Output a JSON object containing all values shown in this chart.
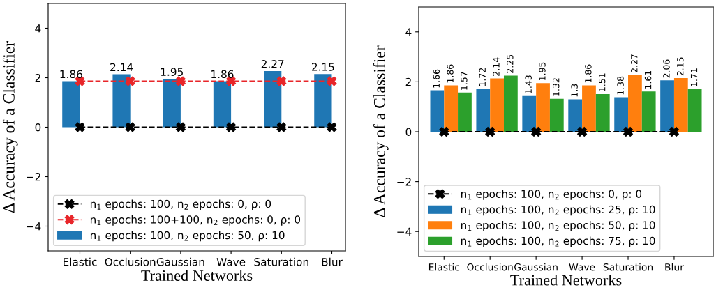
{
  "chart_data": [
    {
      "type": "bar",
      "categories": [
        "Elastic",
        "Occlusion",
        "Gaussian",
        "Wave",
        "Saturation",
        "Blur"
      ],
      "xlabel": "Trained Networks",
      "ylabel": "Δ Accuracy of a Classifier",
      "ylim": [
        -5,
        5
      ],
      "yticks": [
        -4,
        -2,
        0,
        2,
        4
      ],
      "legend": "bottom left",
      "series": [
        {
          "name": "n$_{1}$ epochs: 100, n$_{2}$ epochs: 0, ρ: 0",
          "type": "line",
          "color": "#000000",
          "marker": "cross",
          "line_style": "dashed",
          "values": [
            0,
            0,
            0,
            0,
            0,
            0
          ]
        },
        {
          "name": "n$_{1}$ epochs: 100+100, n$_{2}$ epochs: 0, ρ: 0",
          "type": "line",
          "color": "#e8262a",
          "marker": "cross",
          "line_style": "dashed",
          "values": [
            1.86,
            1.86,
            1.86,
            1.86,
            1.86,
            1.86
          ]
        },
        {
          "name": "n$_{1}$ epochs: 100, n$_{2}$ epochs: 50, ρ: 10",
          "color": "#1f77b4",
          "values": [
            1.86,
            2.14,
            1.95,
            1.86,
            2.27,
            2.15
          ],
          "value_labels": [
            "1.86",
            "2.14",
            "1.95",
            "1.86",
            "2.27",
            "2.15"
          ]
        }
      ]
    },
    {
      "type": "bar",
      "categories": [
        "Elastic",
        "Occlusion",
        "Gaussian",
        "Wave",
        "Saturation",
        "Blur"
      ],
      "xlabel": "Trained Networks",
      "ylabel": "Δ Accuracy of a Classifier",
      "ylim": [
        -5,
        5
      ],
      "yticks": [
        -4,
        -2,
        0,
        2,
        4
      ],
      "legend": "bottom left",
      "series": [
        {
          "name": "n$_{1}$ epochs: 100, n$_{2}$ epochs: 0, ρ: 0",
          "type": "line",
          "color": "#000000",
          "marker": "cross",
          "line_style": "dashed",
          "values": [
            0,
            0,
            0,
            0,
            0,
            0
          ]
        },
        {
          "name": "n$_{1}$ epochs: 100, n$_{2}$ epochs: 25, ρ: 10",
          "color": "#1f77b4",
          "values": [
            1.66,
            1.72,
            1.43,
            1.3,
            1.38,
            2.06
          ],
          "value_labels": [
            "1.66",
            "1.72",
            "1.43",
            "1.3",
            "1.38",
            "2.06"
          ]
        },
        {
          "name": "n$_{1}$ epochs: 100, n$_{2}$ epochs: 50, ρ: 10",
          "color": "#ff7f0e",
          "values": [
            1.86,
            2.14,
            1.95,
            1.86,
            2.27,
            2.15
          ],
          "value_labels": [
            "1.86",
            "2.14",
            "1.95",
            "1.86",
            "2.27",
            "2.15"
          ]
        },
        {
          "name": "n$_{1}$ epochs: 100, n$_{2}$ epochs: 75, ρ: 10",
          "color": "#2ca02c",
          "values": [
            1.57,
            2.25,
            1.32,
            1.51,
            1.61,
            1.71
          ],
          "value_labels": [
            "1.57",
            "2.25",
            "1.32",
            "1.51",
            "1.61",
            "1.71"
          ]
        }
      ]
    }
  ]
}
